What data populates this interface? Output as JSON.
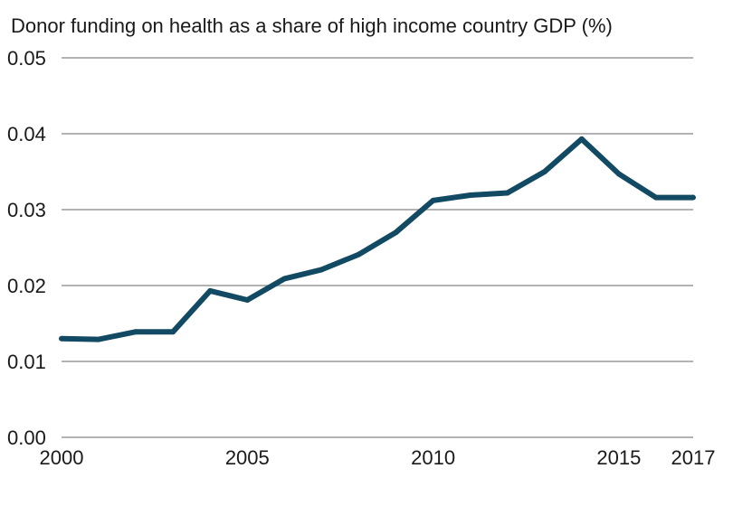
{
  "chart_data": {
    "type": "line",
    "title": "Donor funding on health as a share of high income country GDP (%)",
    "xlabel": "",
    "ylabel": "",
    "x": [
      2000,
      2001,
      2002,
      2003,
      2004,
      2005,
      2006,
      2007,
      2008,
      2009,
      2010,
      2011,
      2012,
      2013,
      2014,
      2015,
      2016,
      2017
    ],
    "series": [
      {
        "values": [
          0.013,
          0.0129,
          0.0139,
          0.0139,
          0.0193,
          0.0181,
          0.0209,
          0.0221,
          0.0241,
          0.027,
          0.0312,
          0.0319,
          0.0322,
          0.035,
          0.0393,
          0.0347,
          0.0316,
          0.0316
        ],
        "color": "#124a63"
      }
    ],
    "xticks": [
      "2000",
      "2005",
      "2010",
      "2015",
      "2017"
    ],
    "xtick_values": [
      2000,
      2005,
      2010,
      2015,
      2017
    ],
    "yticks": [
      "0.00",
      "0.01",
      "0.02",
      "0.03",
      "0.04",
      "0.05"
    ],
    "ytick_values": [
      0,
      0.01,
      0.02,
      0.03,
      0.04,
      0.05
    ],
    "xlim": [
      2000,
      2017
    ],
    "ylim": [
      0,
      0.05
    ],
    "grid": "horizontal",
    "gridColor": "#9a9a9a",
    "legend": "none"
  }
}
